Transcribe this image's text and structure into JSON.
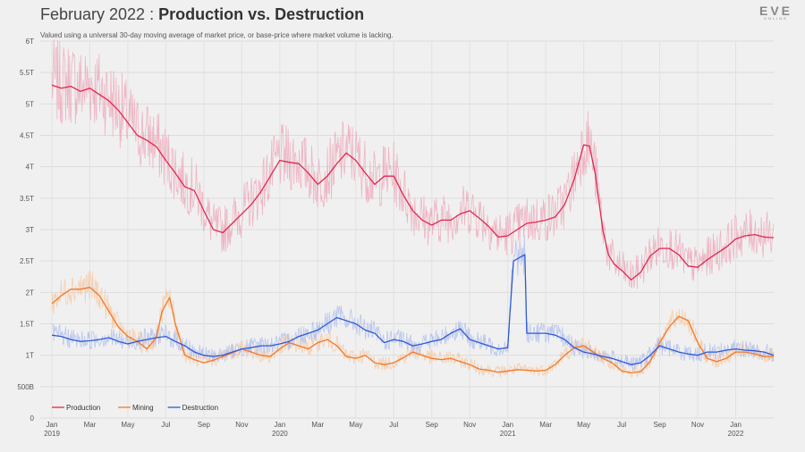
{
  "header": {
    "title_prefix": "February 2022 : ",
    "title_bold": "Production vs. Destruction",
    "subtitle": "Valued using a universal 30-day moving average of market price, or base-price where market volume is lacking.",
    "logo_top": "EVE",
    "logo_bottom": "ONLINE"
  },
  "chart_data": {
    "type": "line",
    "title": "February 2022 : Production vs. Destruction",
    "xlabel": "",
    "ylabel": "",
    "ylim": [
      0,
      6
    ],
    "y_unit": "trillion ISK",
    "y_ticks": [
      {
        "v": 0,
        "label": "0"
      },
      {
        "v": 0.5,
        "label": "500B"
      },
      {
        "v": 1,
        "label": "1T"
      },
      {
        "v": 1.5,
        "label": "1.5T"
      },
      {
        "v": 2,
        "label": "2T"
      },
      {
        "v": 2.5,
        "label": "2.5T"
      },
      {
        "v": 3,
        "label": "3T"
      },
      {
        "v": 3.5,
        "label": "3.5T"
      },
      {
        "v": 4,
        "label": "4T"
      },
      {
        "v": 4.5,
        "label": "4.5T"
      },
      {
        "v": 5,
        "label": "5T"
      },
      {
        "v": 5.5,
        "label": "5.5T"
      },
      {
        "v": 6,
        "label": "6T"
      }
    ],
    "x_range_months": [
      0,
      38
    ],
    "x_ticks": [
      {
        "m": 0,
        "label": "Jan",
        "year": "2019"
      },
      {
        "m": 2,
        "label": "Mar"
      },
      {
        "m": 4,
        "label": "May"
      },
      {
        "m": 6,
        "label": "Jul"
      },
      {
        "m": 8,
        "label": "Sep"
      },
      {
        "m": 10,
        "label": "Nov"
      },
      {
        "m": 12,
        "label": "Jan",
        "year": "2020"
      },
      {
        "m": 14,
        "label": "Mar"
      },
      {
        "m": 16,
        "label": "May"
      },
      {
        "m": 18,
        "label": "Jul"
      },
      {
        "m": 20,
        "label": "Sep"
      },
      {
        "m": 22,
        "label": "Nov"
      },
      {
        "m": 24,
        "label": "Jan",
        "year": "2021"
      },
      {
        "m": 26,
        "label": "Mar"
      },
      {
        "m": 28,
        "label": "May"
      },
      {
        "m": 30,
        "label": "Jul"
      },
      {
        "m": 32,
        "label": "Sep"
      },
      {
        "m": 34,
        "label": "Nov"
      },
      {
        "m": 36,
        "label": "Jan",
        "year": "2022"
      }
    ],
    "legend_position": "bottom-left",
    "series": [
      {
        "name": "Production",
        "color": "#e0284f",
        "raw_color": "#eda1b5",
        "x": [
          0,
          0.5,
          1,
          1.5,
          2,
          2.5,
          3,
          3.5,
          4,
          4.5,
          5,
          5.5,
          6,
          6.5,
          7,
          7.5,
          8,
          8.5,
          9,
          9.5,
          10,
          10.5,
          11,
          11.5,
          12,
          12.5,
          13,
          13.5,
          14,
          14.5,
          15,
          15.5,
          16,
          16.5,
          17,
          17.5,
          18,
          18.5,
          19,
          19.5,
          20,
          20.5,
          21,
          21.5,
          22,
          22.5,
          23,
          23.5,
          24,
          24.5,
          25,
          25.5,
          26,
          26.5,
          27,
          27.5,
          28,
          28.3,
          28.6,
          29,
          29.3,
          29.6,
          30,
          30.5,
          31,
          31.5,
          32,
          32.5,
          33,
          33.5,
          34,
          34.5,
          35,
          35.5,
          36,
          36.5,
          37,
          37.5,
          38
        ],
        "values": [
          5.3,
          5.25,
          5.28,
          5.2,
          5.25,
          5.15,
          5.05,
          4.9,
          4.7,
          4.5,
          4.42,
          4.32,
          4.1,
          3.9,
          3.68,
          3.62,
          3.3,
          3.0,
          2.95,
          3.1,
          3.25,
          3.4,
          3.6,
          3.85,
          4.1,
          4.07,
          4.05,
          3.9,
          3.72,
          3.85,
          4.05,
          4.22,
          4.1,
          3.9,
          3.72,
          3.85,
          3.85,
          3.55,
          3.3,
          3.15,
          3.07,
          3.15,
          3.15,
          3.25,
          3.3,
          3.18,
          3.05,
          2.88,
          2.9,
          3.0,
          3.1,
          3.12,
          3.15,
          3.2,
          3.4,
          3.8,
          4.35,
          4.33,
          3.9,
          3.0,
          2.6,
          2.45,
          2.35,
          2.2,
          2.32,
          2.58,
          2.7,
          2.7,
          2.6,
          2.42,
          2.4,
          2.52,
          2.62,
          2.72,
          2.85,
          2.9,
          2.92,
          2.88,
          2.87
        ]
      },
      {
        "name": "Mining",
        "color": "#f2782a",
        "raw_color": "#f7c49a",
        "x": [
          0,
          0.5,
          1,
          1.5,
          2,
          2.5,
          3,
          3.5,
          4,
          4.5,
          5,
          5.5,
          5.8,
          6.2,
          6.5,
          7,
          7.5,
          8,
          8.5,
          9,
          10,
          10.5,
          11,
          11.5,
          12,
          12.5,
          13,
          13.5,
          14,
          14.5,
          15,
          15.5,
          16,
          16.5,
          17,
          17.5,
          18,
          18.5,
          19,
          19.5,
          20,
          20.5,
          21,
          21.5,
          22,
          22.5,
          23,
          23.5,
          24,
          24.5,
          25,
          25.5,
          26,
          26.5,
          27,
          27.5,
          28,
          28.5,
          29,
          29.5,
          30,
          30.5,
          31,
          31.5,
          32,
          32.5,
          33,
          33.5,
          34,
          34.5,
          35,
          35.5,
          36,
          36.5,
          37,
          37.5,
          38
        ],
        "values": [
          1.82,
          1.95,
          2.05,
          2.05,
          2.08,
          1.95,
          1.7,
          1.45,
          1.3,
          1.22,
          1.1,
          1.28,
          1.7,
          1.92,
          1.5,
          1.0,
          0.93,
          0.88,
          0.92,
          0.98,
          1.1,
          1.05,
          1.0,
          0.98,
          1.1,
          1.2,
          1.15,
          1.1,
          1.2,
          1.25,
          1.15,
          0.98,
          0.95,
          1.0,
          0.88,
          0.85,
          0.88,
          0.96,
          1.05,
          1.0,
          0.95,
          0.93,
          0.95,
          0.9,
          0.85,
          0.78,
          0.76,
          0.73,
          0.75,
          0.77,
          0.76,
          0.75,
          0.76,
          0.85,
          1.0,
          1.12,
          1.15,
          1.05,
          0.95,
          0.88,
          0.75,
          0.72,
          0.74,
          0.9,
          1.2,
          1.45,
          1.62,
          1.55,
          1.2,
          0.95,
          0.9,
          0.95,
          1.05,
          1.05,
          1.02,
          0.98,
          0.98
        ]
      },
      {
        "name": "Destruction",
        "color": "#2e5ad6",
        "raw_color": "#a8b8ec",
        "x": [
          0,
          0.5,
          1,
          1.5,
          2,
          2.5,
          3,
          3.5,
          4,
          4.5,
          5,
          5.5,
          6,
          6.5,
          7,
          7.5,
          8,
          8.5,
          9,
          9.5,
          10,
          10.5,
          11,
          11.5,
          12,
          12.5,
          13,
          13.5,
          14,
          14.5,
          15,
          15.5,
          16,
          16.5,
          17,
          17.5,
          18,
          18.5,
          19,
          19.5,
          20,
          20.5,
          21,
          21.5,
          22,
          22.5,
          23,
          23.5,
          24,
          24.1,
          24.3,
          24.6,
          24.9,
          25,
          25.5,
          26,
          26.5,
          27,
          27.5,
          28,
          28.5,
          29,
          29.5,
          30,
          30.5,
          31,
          31.5,
          32,
          32.5,
          33,
          33.5,
          34,
          34.5,
          35,
          35.5,
          36,
          36.5,
          37,
          37.5,
          38
        ],
        "values": [
          1.32,
          1.3,
          1.25,
          1.22,
          1.23,
          1.25,
          1.28,
          1.22,
          1.18,
          1.22,
          1.25,
          1.28,
          1.3,
          1.22,
          1.15,
          1.05,
          1.0,
          0.98,
          1.0,
          1.05,
          1.1,
          1.12,
          1.15,
          1.15,
          1.18,
          1.22,
          1.3,
          1.35,
          1.4,
          1.5,
          1.6,
          1.55,
          1.5,
          1.4,
          1.35,
          1.2,
          1.25,
          1.22,
          1.15,
          1.18,
          1.22,
          1.25,
          1.35,
          1.42,
          1.25,
          1.2,
          1.15,
          1.1,
          1.12,
          1.6,
          2.5,
          2.55,
          2.6,
          1.35,
          1.35,
          1.35,
          1.32,
          1.25,
          1.12,
          1.05,
          1.02,
          0.98,
          0.95,
          0.9,
          0.85,
          0.88,
          1.0,
          1.15,
          1.1,
          1.05,
          1.02,
          1.0,
          1.05,
          1.05,
          1.08,
          1.1,
          1.08,
          1.07,
          1.05,
          1.0
        ]
      }
    ]
  }
}
